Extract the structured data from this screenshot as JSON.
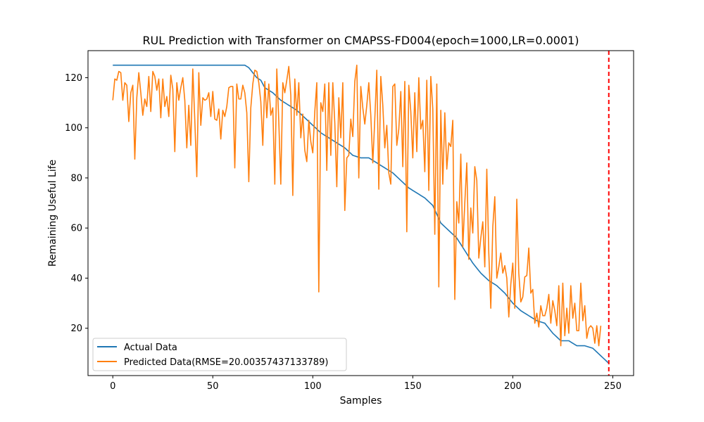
{
  "chart_data": {
    "type": "line",
    "title": "RUL Prediction with Transformer on CMAPSS-FD004(epoch=1000,LR=0.0001)",
    "xlabel": "Samples",
    "ylabel": "Remaining Useful Life",
    "xlim": [
      -12.4,
      260.4
    ],
    "ylim": [
      1.1,
      130.8
    ],
    "xticks": [
      0,
      50,
      100,
      150,
      200,
      250
    ],
    "yticks": [
      20,
      40,
      60,
      80,
      100,
      120
    ],
    "grid": false,
    "legend_position": "lower-left",
    "vline": {
      "x": 248,
      "color": "#ff0000",
      "style": "dashed"
    },
    "series": [
      {
        "name": "Actual Data",
        "color": "#1f77b4",
        "keypoints": [
          [
            0,
            125
          ],
          [
            66,
            125
          ],
          [
            68,
            124
          ],
          [
            70,
            122
          ],
          [
            72,
            120
          ],
          [
            74,
            119
          ],
          [
            76,
            116
          ],
          [
            80,
            114
          ],
          [
            84,
            111
          ],
          [
            88,
            109
          ],
          [
            92,
            107
          ],
          [
            96,
            104
          ],
          [
            100,
            101
          ],
          [
            104,
            98
          ],
          [
            108,
            96
          ],
          [
            112,
            94
          ],
          [
            116,
            92
          ],
          [
            120,
            89
          ],
          [
            124,
            88
          ],
          [
            128,
            88
          ],
          [
            132,
            86
          ],
          [
            136,
            84
          ],
          [
            140,
            82
          ],
          [
            144,
            79
          ],
          [
            148,
            76
          ],
          [
            152,
            74
          ],
          [
            156,
            72
          ],
          [
            160,
            69
          ],
          [
            164,
            62
          ],
          [
            168,
            59
          ],
          [
            172,
            56
          ],
          [
            176,
            51
          ],
          [
            180,
            46
          ],
          [
            184,
            42
          ],
          [
            188,
            39
          ],
          [
            192,
            37
          ],
          [
            196,
            34
          ],
          [
            200,
            30
          ],
          [
            204,
            27
          ],
          [
            208,
            25
          ],
          [
            212,
            23
          ],
          [
            216,
            22
          ],
          [
            220,
            18
          ],
          [
            224,
            15
          ],
          [
            228,
            15
          ],
          [
            232,
            13
          ],
          [
            236,
            13
          ],
          [
            240,
            12
          ],
          [
            244,
            9
          ],
          [
            248,
            6
          ]
        ]
      },
      {
        "name": "Predicted Data(RMSE=20.00357437133789)",
        "color": "#ff7f0e",
        "values": [
          111,
          119.5,
          119,
          122.5,
          122,
          111,
          118,
          117,
          102.5,
          114,
          117,
          87.5,
          112,
          122,
          114,
          105,
          111.5,
          108.5,
          120.5,
          106.5,
          122.5,
          120.5,
          115,
          119.5,
          104,
          119.5,
          108.5,
          112.5,
          104.5,
          121,
          115.5,
          90.5,
          118,
          111,
          116,
          120,
          111,
          92,
          109,
          93,
          123.5,
          103,
          80.5,
          122,
          101,
          112,
          111,
          111.5,
          114,
          104.5,
          114.5,
          103.5,
          103,
          107.5,
          95.5,
          107,
          104.5,
          108.5,
          116,
          116.5,
          116.5,
          84,
          117.5,
          111.5,
          111.5,
          117,
          114,
          106,
          78.5,
          108,
          117.5,
          123,
          122.5,
          118,
          110.5,
          93,
          118.5,
          104,
          117.5,
          105,
          108,
          77.5,
          123.5,
          102.5,
          77.5,
          118,
          114,
          119,
          124.5,
          113,
          73,
          119.5,
          105,
          118,
          96,
          105.5,
          91,
          86.5,
          103,
          94.5,
          90,
          106.5,
          118,
          34.5,
          110,
          106.5,
          117.5,
          83,
          118,
          89,
          118,
          102,
          76.5,
          112,
          96,
          118,
          67,
          88,
          89,
          103.5,
          96.5,
          118.5,
          125,
          80,
          116.5,
          108,
          101.5,
          109,
          118,
          105,
          86,
          103.5,
          123,
          75.5,
          120.5,
          109,
          92,
          101,
          82,
          77.5,
          116.5,
          117.5,
          93,
          99.5,
          114.5,
          84.5,
          118.5,
          58.5,
          117,
          106.5,
          88,
          114,
          90.5,
          120,
          99.5,
          103,
          82.5,
          119,
          75,
          120.5,
          107.5,
          57.5,
          117.5,
          36.5,
          107,
          77.5,
          106,
          83.5,
          94,
          92.5,
          103,
          31.5,
          70.5,
          62,
          89.5,
          52.5,
          70,
          86,
          47.5,
          68,
          58,
          84.5,
          79,
          48,
          56,
          62.5,
          44.5,
          83.5,
          50,
          28,
          60.5,
          72.5,
          40,
          44.5,
          50,
          42,
          45,
          40,
          24.5,
          37.5,
          46,
          28,
          71.5,
          42,
          30.5,
          32.5,
          40.5,
          41,
          52,
          34,
          35.5,
          22,
          26,
          20.5,
          29,
          25,
          25,
          28,
          33.5,
          22,
          31,
          27,
          21,
          37,
          13,
          38,
          17,
          28,
          18,
          37,
          24,
          30,
          19,
          19,
          38,
          23,
          29,
          16,
          20,
          21,
          20,
          14,
          21,
          13,
          21
        ]
      }
    ]
  }
}
